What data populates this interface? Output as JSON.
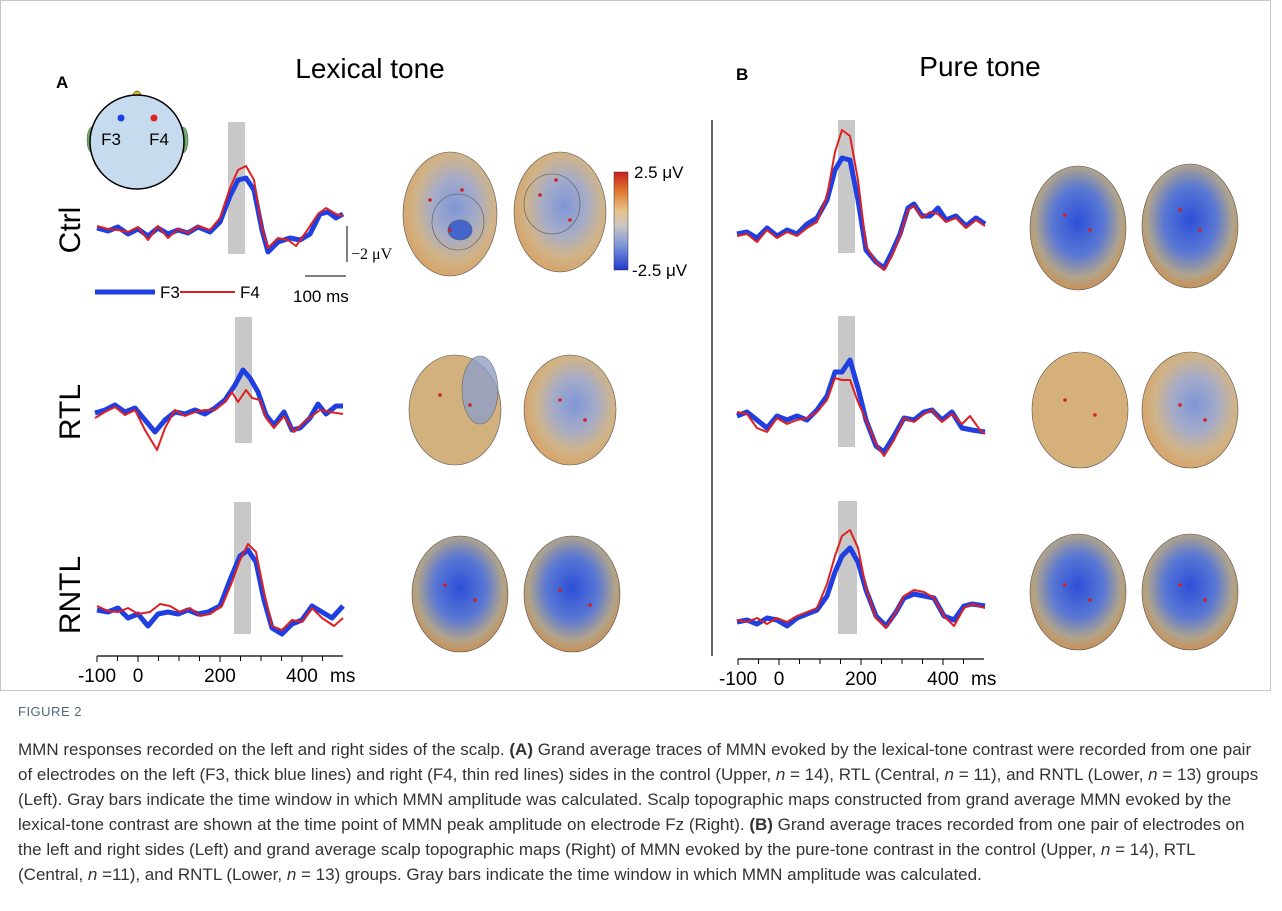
{
  "panel_a": {
    "label": "A",
    "title": "Lexical tone",
    "electrodes": [
      "F3",
      "F4"
    ],
    "rows": [
      "Ctrl",
      "RTL",
      "RNTL"
    ],
    "amplitude_scale": "−2 μV",
    "time_scale": "100 ms",
    "legend": [
      "F3",
      "F4"
    ],
    "colorbar": [
      "2.5 μV",
      "-2.5 μV"
    ],
    "xlim": [
      -100,
      500
    ],
    "xticks": [
      -100,
      0,
      200,
      400
    ],
    "minor_xticks": [
      -50,
      50,
      100,
      150,
      250,
      300,
      350,
      450
    ],
    "x_unit": "ms"
  },
  "panel_b": {
    "label": "B",
    "title": "Pure tone",
    "xlim": [
      -100,
      500
    ],
    "xticks": [
      -100,
      0,
      200,
      400
    ],
    "minor_xticks": [
      -50,
      50,
      100,
      150,
      250,
      300,
      350,
      450
    ],
    "x_unit": "ms"
  },
  "caption": {
    "label": "FIGURE 2",
    "parts": [
      "MMN responses recorded on the left and right sides of the scalp. ",
      "(A)",
      " Grand average traces of MMN evoked by the lexical-tone contrast were recorded from one pair of electrodes on the left (F3, thick blue lines) and right (F4, thin red lines) sides in the control (Upper, ",
      "n",
      " = 14), RTL (Central, ",
      "n",
      " = 11), and RNTL (Lower, ",
      "n",
      " = 13) groups (Left). Gray bars indicate the time window in which MMN amplitude was calculated. Scalp topographic maps constructed from grand average MMN evoked by the lexical-tone contrast are shown at the time point of MMN peak amplitude on electrode Fz (Right). ",
      "(B)",
      " Grand average traces recorded from one pair of electrodes on the left and right sides (Left) and grand average scalp topographic maps (Right) of MMN evoked by the pure-tone contrast in the control (Upper, ",
      "n",
      " = 14), RTL (Central, ",
      "n",
      " =11), and RNTL (Lower, ",
      "n",
      " = 13) groups. Gray bars indicate the time window in which MMN amplitude was calculated."
    ]
  }
}
